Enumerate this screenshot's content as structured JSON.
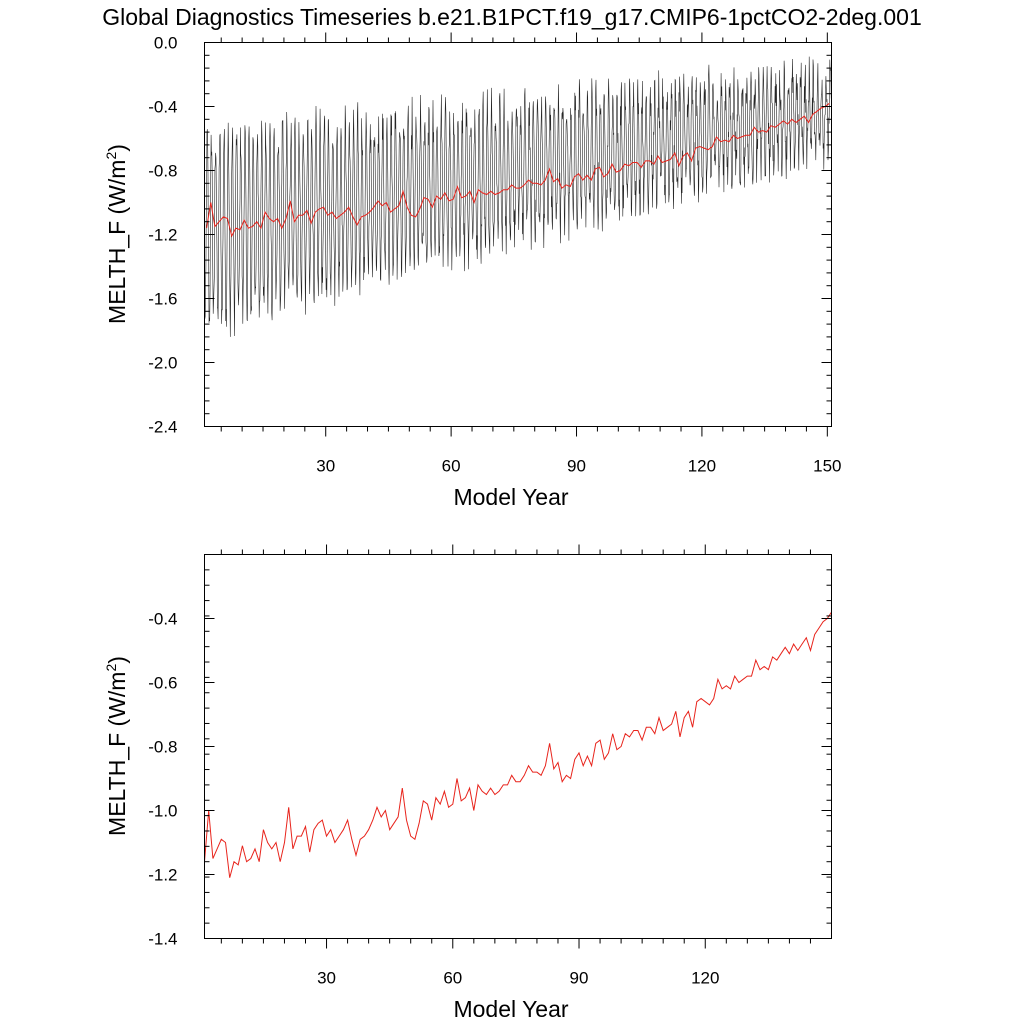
{
  "title": "Global Diagnostics Timeseries b.e21.B1PCT.f19_g17.CMIP6-1pctCO2-2deg.001",
  "chart_data": [
    {
      "type": "line",
      "xlabel": "Model Year",
      "ylabel_main": "MELTH_F (W/m",
      "ylabel_sup": "2",
      "ylabel_tail": ")",
      "xlim": [
        1,
        151
      ],
      "ylim": [
        -2.4,
        0.0
      ],
      "xticks": [
        30,
        60,
        90,
        120,
        150
      ],
      "yticks": [
        "0.0",
        "-0.4",
        "-0.8",
        "-1.2",
        "-1.6",
        "-2.0",
        "-2.4"
      ],
      "grid": false,
      "series": [
        {
          "kind": "monthly",
          "color": "#000000",
          "seasonal_peak_start": -0.6,
          "seasonal_peak_end": -0.2,
          "seasonal_trough_start": -1.75,
          "seasonal_trough_end": -0.65
        },
        {
          "kind": "annual_mean",
          "color": "#e8241c"
        }
      ]
    },
    {
      "type": "line",
      "xlabel": "Model Year",
      "ylabel_main": "MELTH_F (W/m",
      "ylabel_sup": "2",
      "ylabel_tail": ")",
      "xlim": [
        1,
        150
      ],
      "ylim": [
        -1.4,
        -0.2
      ],
      "xticks": [
        30,
        60,
        90,
        120
      ],
      "yticks": [
        "-0.4",
        "-0.6",
        "-0.8",
        "-1.0",
        "-1.2",
        "-1.4"
      ],
      "grid": false,
      "series": [
        {
          "kind": "annual_mean",
          "color": "#e8241c",
          "x": [
            1,
            2,
            3,
            4,
            5,
            6,
            7,
            8,
            9,
            10,
            11,
            12,
            13,
            14,
            15,
            16,
            17,
            18,
            19,
            20,
            21,
            22,
            23,
            24,
            25,
            26,
            27,
            28,
            29,
            30,
            31,
            32,
            33,
            34,
            35,
            36,
            37,
            38,
            39,
            40,
            41,
            42,
            43,
            44,
            45,
            46,
            47,
            48,
            49,
            50,
            51,
            52,
            53,
            54,
            55,
            56,
            57,
            58,
            59,
            60,
            61,
            62,
            63,
            64,
            65,
            66,
            67,
            68,
            69,
            70,
            71,
            72,
            73,
            74,
            75,
            76,
            77,
            78,
            79,
            80,
            81,
            82,
            83,
            84,
            85,
            86,
            87,
            88,
            89,
            90,
            91,
            92,
            93,
            94,
            95,
            96,
            97,
            98,
            99,
            100,
            101,
            102,
            103,
            104,
            105,
            106,
            107,
            108,
            109,
            110,
            111,
            112,
            113,
            114,
            115,
            116,
            117,
            118,
            119,
            120,
            121,
            122,
            123,
            124,
            125,
            126,
            127,
            128,
            129,
            130,
            131,
            132,
            133,
            134,
            135,
            136,
            137,
            138,
            139,
            140,
            141,
            142,
            143,
            144,
            145,
            146,
            147,
            148,
            149,
            150
          ],
          "values": [
            -1.16,
            -1.0,
            -1.15,
            -1.12,
            -1.09,
            -1.1,
            -1.21,
            -1.16,
            -1.17,
            -1.11,
            -1.16,
            -1.15,
            -1.12,
            -1.16,
            -1.06,
            -1.1,
            -1.12,
            -1.1,
            -1.16,
            -1.1,
            -0.99,
            -1.12,
            -1.08,
            -1.08,
            -1.05,
            -1.13,
            -1.06,
            -1.04,
            -1.03,
            -1.08,
            -1.06,
            -1.1,
            -1.08,
            -1.06,
            -1.03,
            -1.09,
            -1.14,
            -1.09,
            -1.08,
            -1.06,
            -1.03,
            -0.99,
            -1.02,
            -1.0,
            -1.06,
            -1.04,
            -1.02,
            -0.93,
            -1.03,
            -1.08,
            -1.09,
            -1.04,
            -0.97,
            -0.98,
            -1.03,
            -0.96,
            -0.98,
            -0.94,
            -0.99,
            -0.98,
            -0.9,
            -0.97,
            -0.96,
            -0.93,
            -1.0,
            -0.92,
            -0.94,
            -0.95,
            -0.93,
            -0.95,
            -0.94,
            -0.92,
            -0.92,
            -0.89,
            -0.91,
            -0.91,
            -0.89,
            -0.86,
            -0.88,
            -0.88,
            -0.89,
            -0.86,
            -0.79,
            -0.87,
            -0.85,
            -0.91,
            -0.89,
            -0.9,
            -0.84,
            -0.82,
            -0.86,
            -0.83,
            -0.86,
            -0.79,
            -0.78,
            -0.84,
            -0.82,
            -0.76,
            -0.81,
            -0.8,
            -0.76,
            -0.77,
            -0.75,
            -0.75,
            -0.78,
            -0.74,
            -0.74,
            -0.76,
            -0.71,
            -0.75,
            -0.74,
            -0.73,
            -0.69,
            -0.77,
            -0.71,
            -0.69,
            -0.74,
            -0.66,
            -0.65,
            -0.66,
            -0.67,
            -0.65,
            -0.59,
            -0.62,
            -0.61,
            -0.62,
            -0.58,
            -0.6,
            -0.59,
            -0.58,
            -0.58,
            -0.53,
            -0.56,
            -0.55,
            -0.56,
            -0.52,
            -0.53,
            -0.51,
            -0.49,
            -0.51,
            -0.48,
            -0.5,
            -0.48,
            -0.46,
            -0.5,
            -0.45,
            -0.43,
            -0.41,
            -0.4,
            -0.38
          ]
        }
      ]
    }
  ]
}
